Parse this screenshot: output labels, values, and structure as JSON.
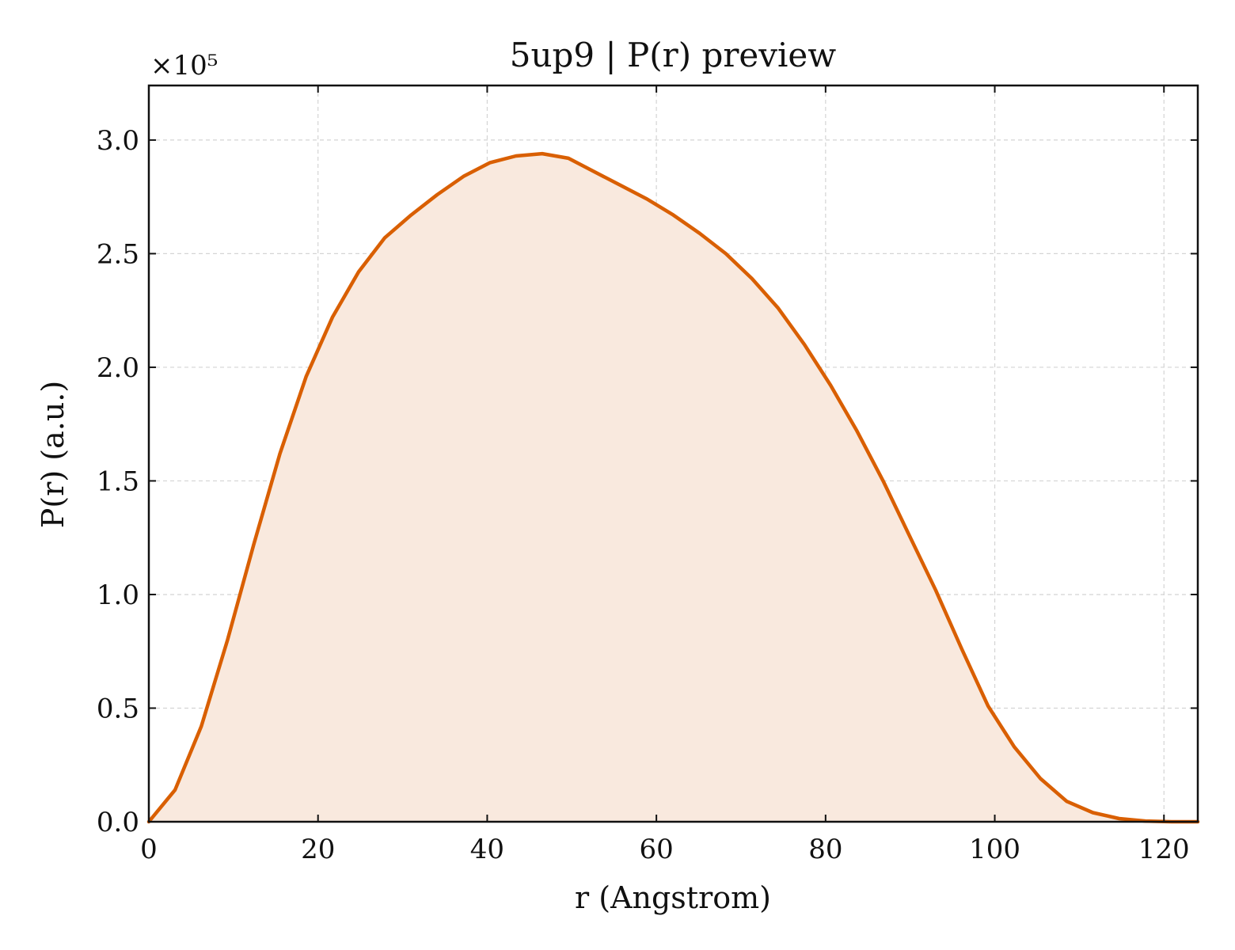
{
  "chart_data": {
    "type": "area",
    "title": "5up9 | P(r) preview",
    "xlabel": "r (Angstrom)",
    "ylabel": "P(r) (a.u.)",
    "y_multiplier_label": "×10⁵",
    "y_scale": 100000,
    "xlim": [
      0,
      124
    ],
    "ylim": [
      0,
      3.24
    ],
    "xticks": [
      0,
      20,
      40,
      60,
      80,
      100,
      120
    ],
    "xtick_labels": [
      "0",
      "20",
      "40",
      "60",
      "80",
      "100",
      "120"
    ],
    "yticks": [
      0,
      0.5,
      1.0,
      1.5,
      2.0,
      2.5,
      3.0
    ],
    "ytick_labels": [
      "0.0",
      "0.5",
      "1.0",
      "1.5",
      "2.0",
      "2.5",
      "3.0"
    ],
    "grid": true,
    "color": "#d95f02",
    "fill_color": "#f9e9de",
    "series": [
      {
        "x": [
          0,
          3.1,
          6.2,
          9.3,
          12.4,
          15.5,
          18.6,
          21.7,
          24.8,
          27.9,
          31.0,
          34.1,
          37.2,
          40.3,
          43.4,
          46.5,
          49.6,
          52.7,
          55.8,
          58.9,
          62.0,
          65.1,
          68.2,
          71.3,
          74.4,
          77.5,
          80.6,
          83.7,
          86.8,
          89.9,
          93.0,
          96.1,
          99.2,
          102.3,
          105.4,
          108.5,
          111.6,
          114.7,
          117.8,
          120.9,
          124.0
        ],
        "y": [
          0.0,
          0.14,
          0.42,
          0.8,
          1.22,
          1.62,
          1.96,
          2.22,
          2.42,
          2.57,
          2.67,
          2.76,
          2.84,
          2.9,
          2.93,
          2.94,
          2.92,
          2.86,
          2.8,
          2.74,
          2.67,
          2.59,
          2.5,
          2.39,
          2.26,
          2.1,
          1.92,
          1.72,
          1.5,
          1.26,
          1.02,
          0.76,
          0.51,
          0.33,
          0.19,
          0.09,
          0.04,
          0.014,
          0.003,
          0.0,
          0.0
        ]
      }
    ]
  }
}
